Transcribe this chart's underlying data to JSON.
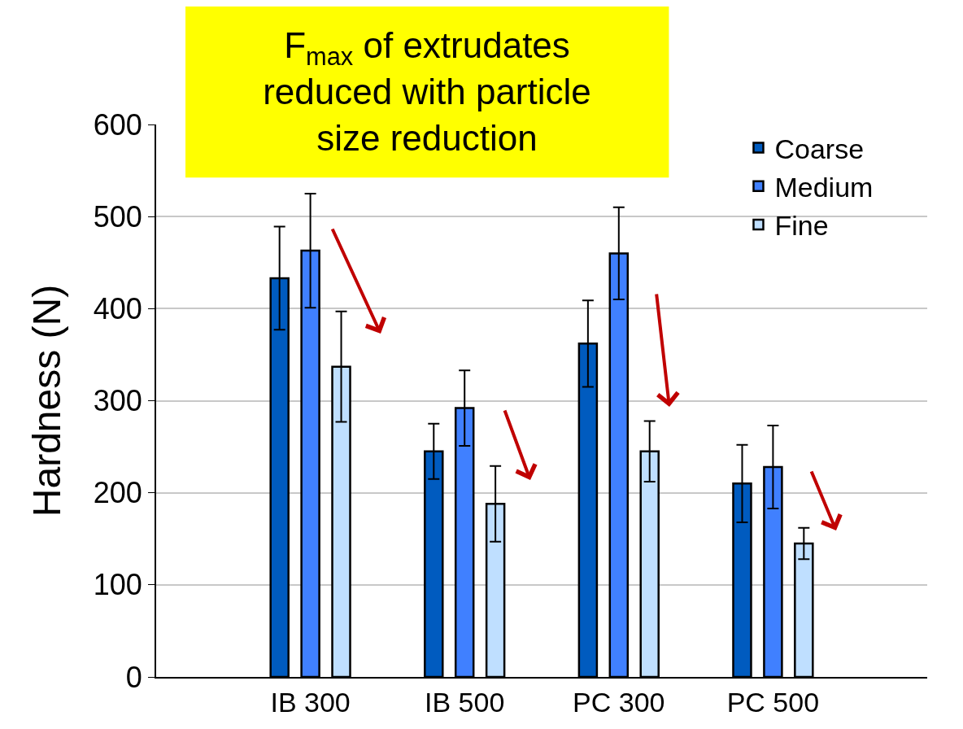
{
  "chart_data": {
    "type": "bar",
    "title": "F$_{max}$ of extrudates reduced with particle size reduction",
    "ylabel": "Hardness (N)",
    "categories": [
      "IB 300",
      "IB 500",
      "PC 300",
      "PC 500"
    ],
    "series": [
      {
        "name": "Coarse",
        "color": "#005bbf",
        "values": [
          433,
          245,
          362,
          210
        ],
        "errors": [
          56,
          30,
          47,
          42
        ]
      },
      {
        "name": "Medium",
        "color": "#4080ff",
        "values": [
          463,
          292,
          460,
          228
        ],
        "errors": [
          62,
          41,
          50,
          45
        ]
      },
      {
        "name": "Fine",
        "color": "#bfdfff",
        "values": [
          337,
          188,
          245,
          145
        ],
        "errors": [
          60,
          41,
          33,
          17
        ]
      }
    ],
    "ylim": [
      0,
      600
    ],
    "yticks": [
      0,
      100,
      200,
      300,
      400,
      500,
      600
    ],
    "grid": "y",
    "legend": "top right"
  }
}
